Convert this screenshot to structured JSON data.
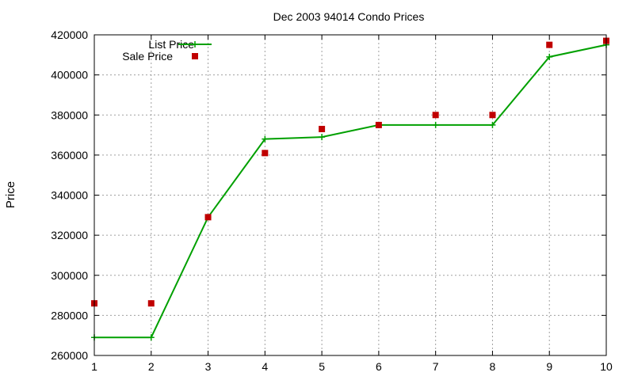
{
  "chart_data": {
    "type": "line",
    "title": "Dec 2003 94014 Condo Prices",
    "xlabel": "",
    "ylabel": "Price",
    "xlim": [
      1,
      10
    ],
    "ylim": [
      260000,
      420000
    ],
    "xticks": [
      1,
      2,
      3,
      4,
      5,
      6,
      7,
      8,
      9,
      10
    ],
    "yticks": [
      260000,
      280000,
      300000,
      320000,
      340000,
      360000,
      380000,
      400000,
      420000
    ],
    "grid": true,
    "legend_position": "top-left",
    "x": [
      1,
      2,
      3,
      4,
      5,
      6,
      7,
      8,
      9,
      10
    ],
    "series": [
      {
        "name": "List Price",
        "style": "line-plus",
        "color": "#00a000",
        "values": [
          269000,
          269000,
          329000,
          368000,
          369000,
          375000,
          375000,
          375000,
          409000,
          415000
        ]
      },
      {
        "name": "Sale Price",
        "style": "square-points",
        "color": "#c00000",
        "values": [
          286000,
          286000,
          329000,
          361000,
          373000,
          375000,
          380000,
          380000,
          415000,
          417000
        ]
      }
    ]
  }
}
